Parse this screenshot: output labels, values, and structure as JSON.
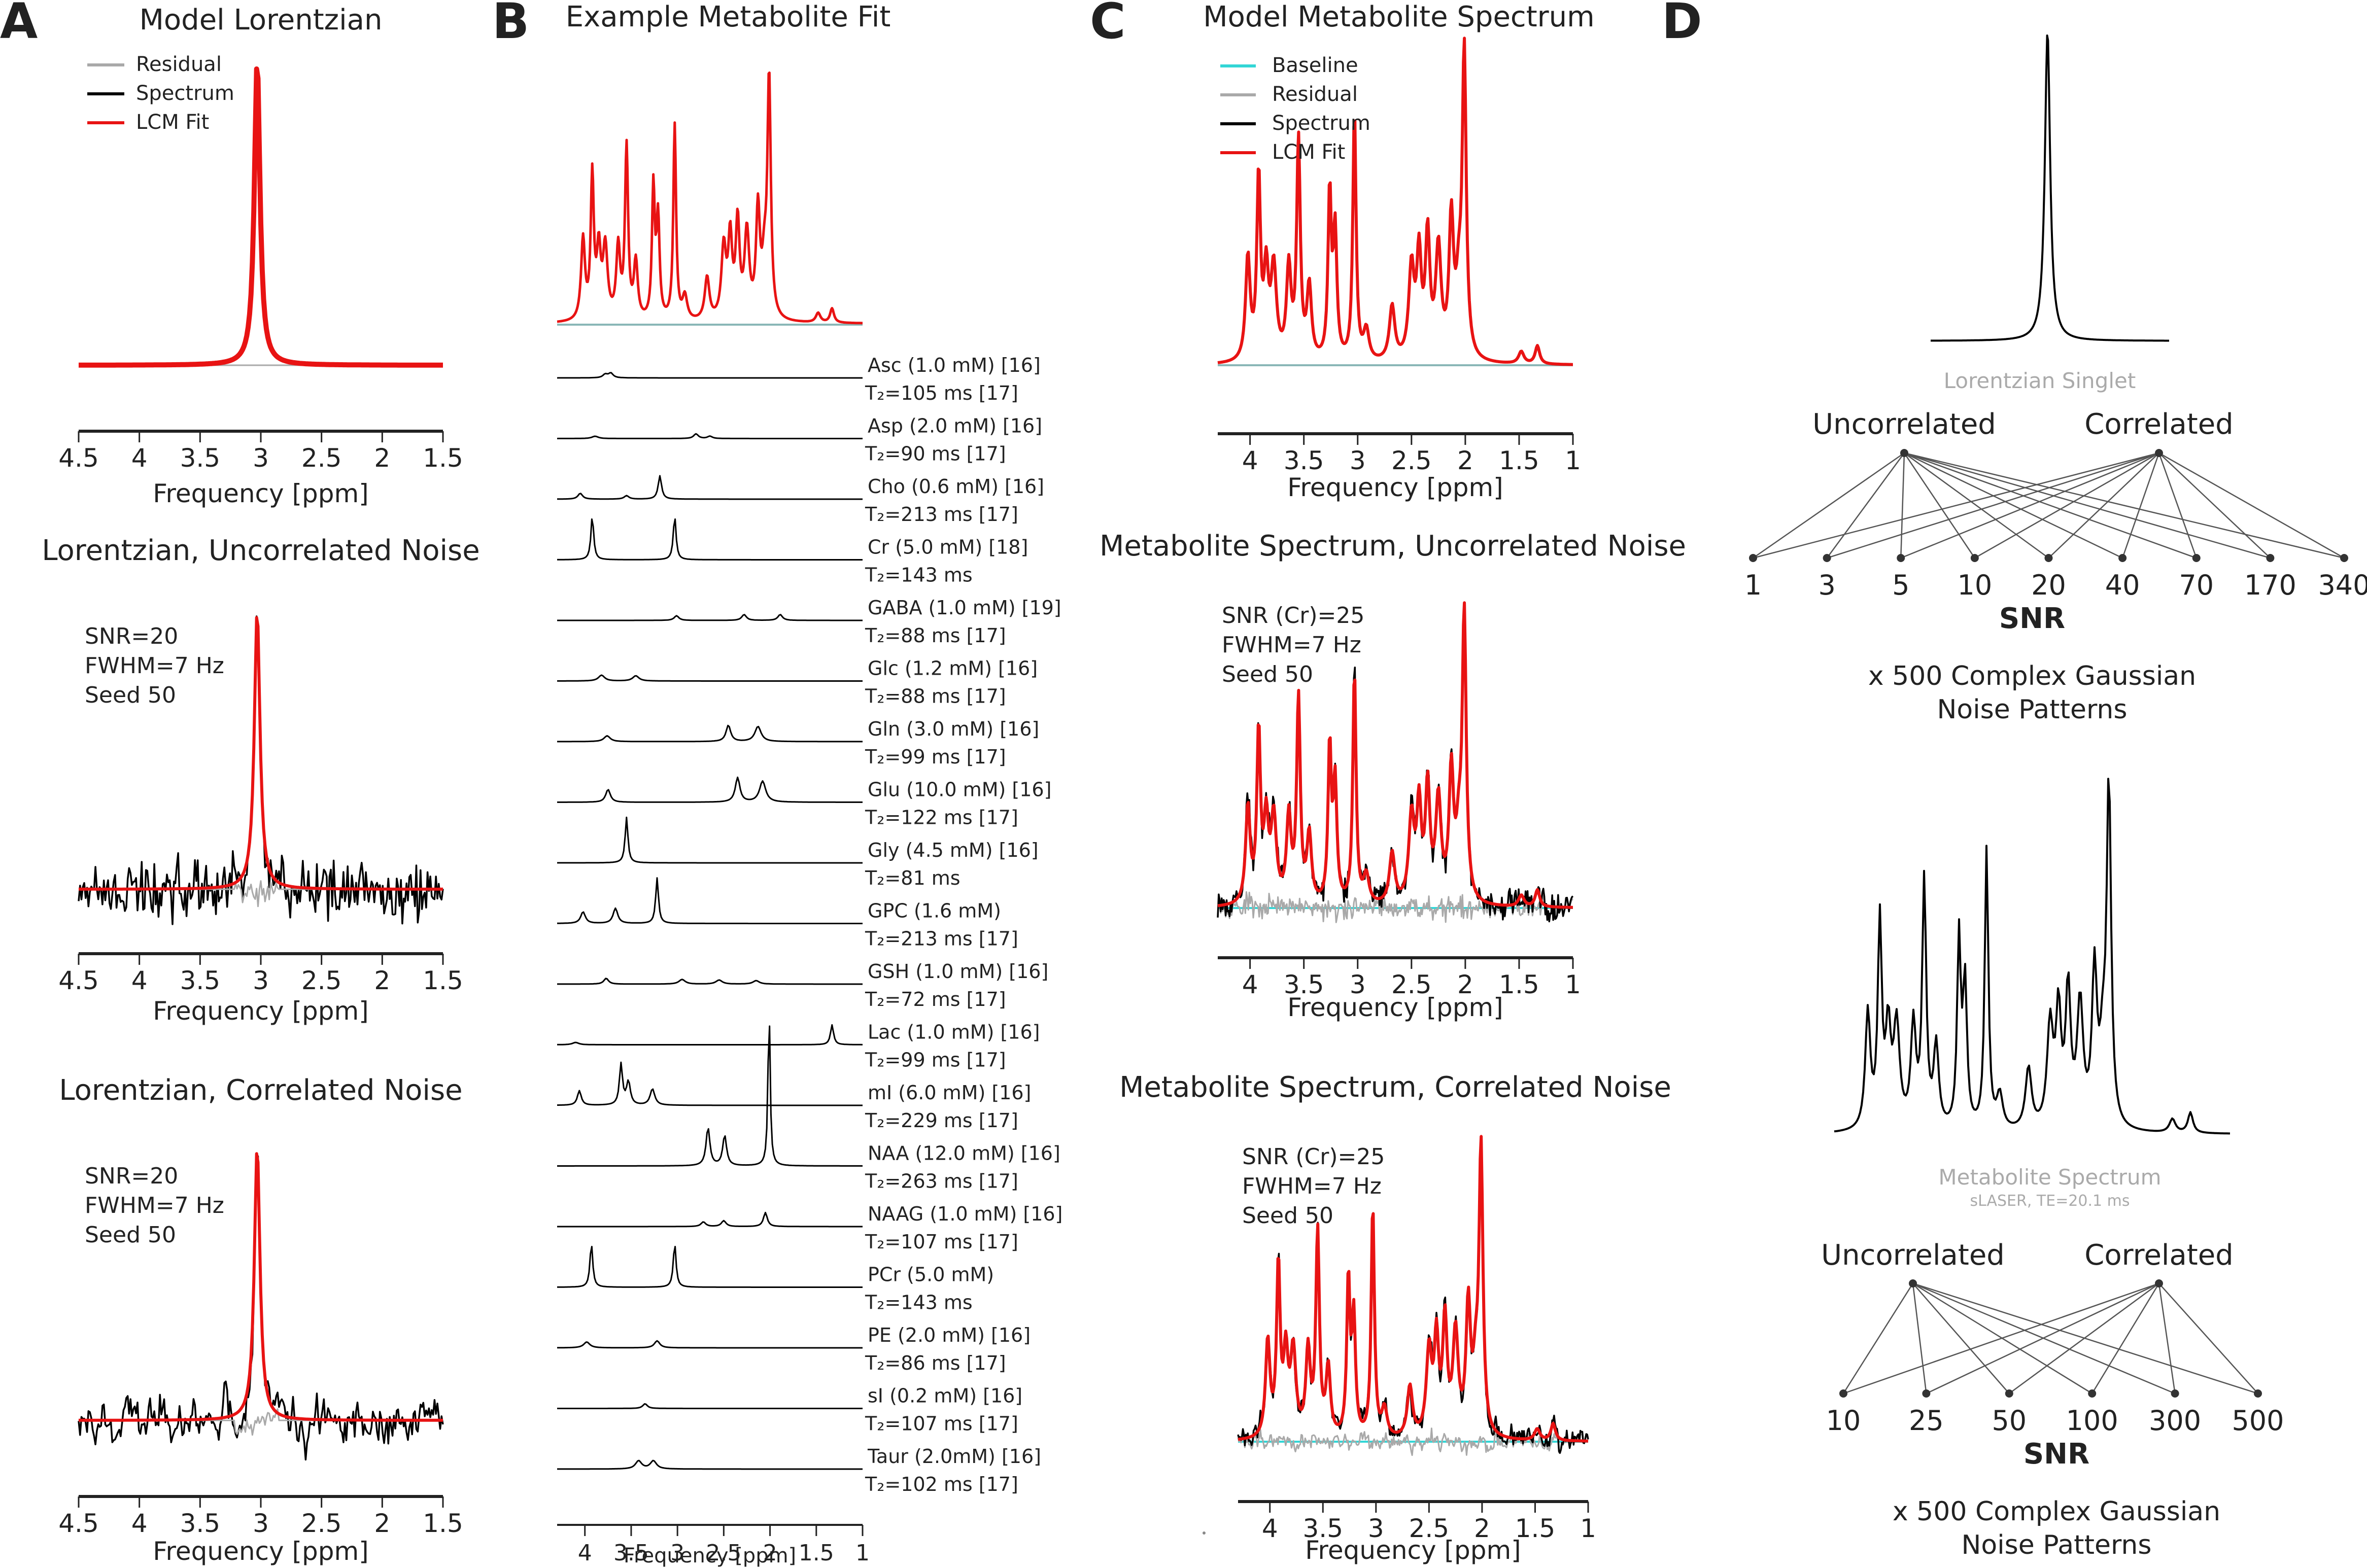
{
  "colors": {
    "fit": "#e81313",
    "spectrum": "#000000",
    "residual": "#a9a9a9",
    "baseline": "#33d6d6"
  },
  "panels": {
    "A": {
      "letter": "A",
      "subplots": [
        {
          "title": "Model Lorentzian",
          "legend": [
            "Residual",
            "Spectrum",
            "LCM Fit"
          ],
          "annotations": []
        },
        {
          "title": "Lorentzian, Uncorrelated Noise",
          "legend": [],
          "annotations": [
            "SNR=20",
            "FWHM=7 Hz",
            "Seed 50"
          ]
        },
        {
          "title": "Lorentzian, Correlated Noise",
          "legend": [],
          "annotations": [
            "SNR=20",
            "FWHM=7 Hz",
            "Seed 50"
          ]
        }
      ]
    },
    "B": {
      "letter": "B",
      "title": "Example Metabolite Fit",
      "metabolites": [
        {
          "label": "Asc (1.0 mM)  [16]",
          "t2": "T₂=105 ms  [17]"
        },
        {
          "label": "Asp (2.0 mM)  [16]",
          "t2": "T₂=90 ms  [17]"
        },
        {
          "label": "Cho (0.6 mM)  [16]",
          "t2": "T₂=213 ms  [17]"
        },
        {
          "label": "Cr (5.0 mM)  [18]",
          "t2": "T₂=143 ms"
        },
        {
          "label": "GABA (1.0 mM) [19]",
          "t2": "T₂=88 ms  [17]"
        },
        {
          "label": "Glc (1.2 mM)  [16]",
          "t2": "T₂=88 ms  [17]"
        },
        {
          "label": "Gln (3.0 mM)  [16]",
          "t2": "T₂=99 ms  [17]"
        },
        {
          "label": "Glu (10.0 mM)  [16]",
          "t2": "T₂=122 ms  [17]"
        },
        {
          "label": "Gly (4.5 mM)  [16]",
          "t2": "T₂=81 ms"
        },
        {
          "label": "GPC (1.6 mM)",
          "t2": "T₂=213 ms  [17]"
        },
        {
          "label": "GSH (1.0 mM)  [16]",
          "t2": "T₂=72 ms  [17]"
        },
        {
          "label": "Lac (1.0 mM)  [16]",
          "t2": "T₂=99 ms  [17]"
        },
        {
          "label": "mI (6.0 mM)  [16]",
          "t2": "T₂=229 ms  [17]"
        },
        {
          "label": "NAA (12.0 mM) [16]",
          "t2": "T₂=263 ms [17]"
        },
        {
          "label": "NAAG (1.0 mM) [16]",
          "t2": "T₂=107 ms [17]"
        },
        {
          "label": "PCr (5.0 mM)",
          "t2": "T₂=143 ms"
        },
        {
          "label": "PE (2.0 mM)  [16]",
          "t2": "T₂=86 ms  [17]"
        },
        {
          "label": "sI (0.2 mM)  [16]",
          "t2": "T₂=107 ms  [17]"
        },
        {
          "label": "Taur (2.0mM)  [16]",
          "t2": "T₂=102 ms  [17]"
        }
      ]
    },
    "C": {
      "letter": "C",
      "subplots": [
        {
          "title": "Model Metabolite Spectrum",
          "legend": [
            "Baseline",
            "Residual",
            "Spectrum",
            "LCM Fit"
          ],
          "annotations": []
        },
        {
          "title": "Metabolite Spectrum, Uncorrelated Noise",
          "legend": [],
          "annotations": [
            "SNR (Cr)=25",
            "FWHM=7 Hz",
            "Seed 50"
          ]
        },
        {
          "title": "Metabolite Spectrum, Correlated Noise",
          "legend": [],
          "annotations": [
            "SNR (Cr)=25",
            "FWHM=7 Hz",
            "Seed 50"
          ]
        }
      ]
    },
    "D": {
      "letter": "D",
      "top": {
        "caption": "Lorentzian Singlet",
        "left_label": "Uncorrelated",
        "right_label": "Correlated",
        "snr_levels": [
          "1",
          "3",
          "5",
          "10",
          "20",
          "40",
          "70",
          "170",
          "340"
        ],
        "axis_label": "SNR",
        "noise_line1": "x 500 Complex Gaussian",
        "noise_line2": "Noise Patterns"
      },
      "bottom": {
        "caption": "Metabolite Spectrum",
        "subcaption": "sLASER, TE=20.1 ms",
        "left_label": "Uncorrelated",
        "right_label": "Correlated",
        "snr_levels": [
          "10",
          "25",
          "50",
          "100",
          "300",
          "500"
        ],
        "axis_label": "SNR",
        "noise_line1": "x 500 Complex Gaussian",
        "noise_line2": "Noise Patterns"
      }
    }
  },
  "chart_data": [
    {
      "type": "line",
      "panel": "A1",
      "title": "Model Lorentzian",
      "xlabel": "Frequency [ppm]",
      "xlim": [
        4.5,
        1.5
      ],
      "xticks": [
        "4.5",
        "4",
        "3.5",
        "3",
        "2.5",
        "2",
        "1.5"
      ],
      "series": [
        {
          "name": "LCM Fit",
          "peak_ppm": 3.03,
          "fwhm_ppm": 0.055
        },
        {
          "name": "Spectrum"
        },
        {
          "name": "Residual"
        }
      ]
    },
    {
      "type": "line",
      "panel": "A2",
      "title": "Lorentzian, Uncorrelated Noise",
      "xlabel": "Frequency [ppm]",
      "xlim": [
        4.5,
        1.5
      ],
      "xticks": [
        "4.5",
        "4",
        "3.5",
        "3",
        "2.5",
        "2",
        "1.5"
      ],
      "snr": 20,
      "fwhm_hz": 7,
      "seed": 50,
      "noise": "uncorrelated"
    },
    {
      "type": "line",
      "panel": "A3",
      "title": "Lorentzian, Correlated Noise",
      "xlabel": "Frequency [ppm]",
      "xlim": [
        4.5,
        1.5
      ],
      "xticks": [
        "4.5",
        "4",
        "3.5",
        "3",
        "2.5",
        "2",
        "1.5"
      ],
      "snr": 20,
      "fwhm_hz": 7,
      "seed": 50,
      "noise": "correlated"
    },
    {
      "type": "line",
      "panel": "B",
      "title": "Example Metabolite Fit",
      "xlabel": "Frequency [ppm]",
      "xlim": [
        4.3,
        1.0
      ],
      "xticks": [
        "4",
        "3.5",
        "3",
        "2.5",
        "2",
        "1.5",
        "1"
      ],
      "series_count": 19
    },
    {
      "type": "line",
      "panel": "C1",
      "title": "Model Metabolite Spectrum",
      "xlabel": "Frequency [ppm]",
      "xlim": [
        4.3,
        1.0
      ],
      "xticks": [
        "4",
        "3.5",
        "3",
        "2.5",
        "2",
        "1.5",
        "1"
      ]
    },
    {
      "type": "line",
      "panel": "C2",
      "title": "Metabolite Spectrum, Uncorrelated Noise",
      "xlabel": "Frequency [ppm]",
      "xlim": [
        4.3,
        1.0
      ],
      "xticks": [
        "4",
        "3.5",
        "3",
        "2.5",
        "2",
        "1.5",
        "1"
      ],
      "snr_cr": 25,
      "fwhm_hz": 7,
      "seed": 50
    },
    {
      "type": "line",
      "panel": "C3",
      "title": "Metabolite Spectrum, Correlated Noise",
      "xlabel": "Frequency [ppm]",
      "xlim": [
        4.3,
        1.0
      ],
      "xticks": [
        "4",
        "3.5",
        "3",
        "2.5",
        "2",
        "1.5",
        "1"
      ],
      "snr_cr": 25,
      "fwhm_hz": 7,
      "seed": 50
    }
  ]
}
